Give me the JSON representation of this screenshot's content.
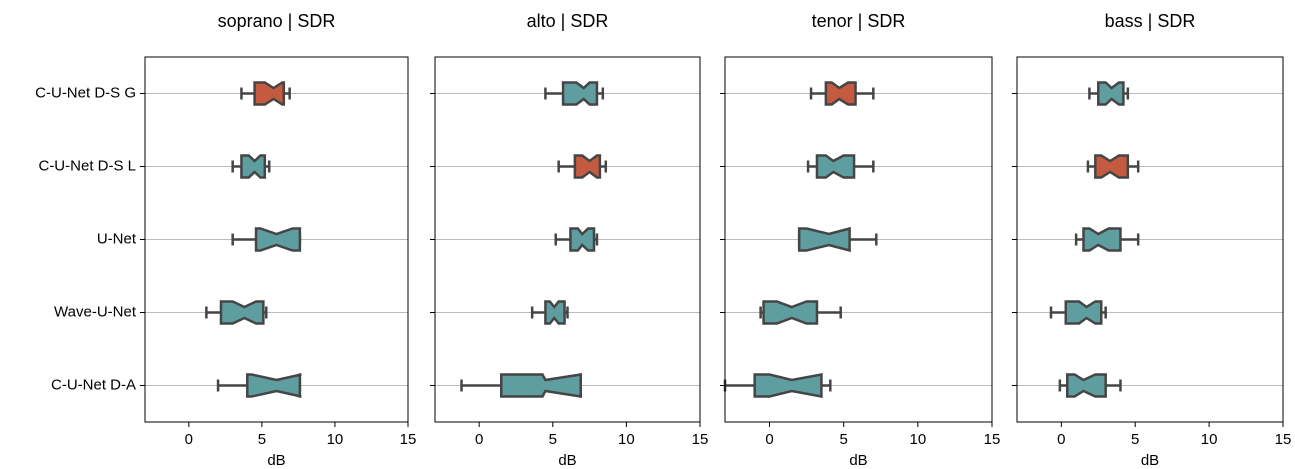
{
  "chart_data": [
    {
      "type": "box",
      "title": "soprano | SDR",
      "xlabel": "dB",
      "xlim": [
        -3,
        15
      ],
      "xticks": [
        0,
        5,
        10,
        15
      ],
      "categories": [
        "C-U-Net D-S G",
        "C-U-Net D-S L",
        "U-Net",
        "Wave-U-Net",
        "C-U-Net D-A"
      ],
      "boxes": [
        {
          "min": 3.6,
          "q1": 4.5,
          "median": 5.8,
          "q3": 6.5,
          "max": 6.9,
          "notch_low": 5.2,
          "notch_high": 6.4,
          "color": "#c45a3f"
        },
        {
          "min": 3.0,
          "q1": 3.6,
          "median": 4.5,
          "q3": 5.2,
          "max": 5.5,
          "notch_low": 4.1,
          "notch_high": 4.9,
          "color": "#5f9ea0"
        },
        {
          "min": 3.0,
          "q1": 4.6,
          "median": 6.0,
          "q3": 7.6,
          "max": 7.6,
          "notch_low": 4.9,
          "notch_high": 7.1,
          "color": "#5f9ea0"
        },
        {
          "min": 1.2,
          "q1": 2.2,
          "median": 3.8,
          "q3": 5.1,
          "max": 5.3,
          "notch_low": 3.0,
          "notch_high": 4.6,
          "color": "#5f9ea0"
        },
        {
          "min": 2.0,
          "q1": 4.0,
          "median": 6.0,
          "q3": 7.6,
          "max": 7.6,
          "notch_low": 4.3,
          "notch_high": 7.7,
          "color": "#5f9ea0"
        }
      ]
    },
    {
      "type": "box",
      "title": "alto | SDR",
      "xlabel": "dB",
      "xlim": [
        -3,
        15
      ],
      "xticks": [
        0,
        5,
        10,
        15
      ],
      "boxes": [
        {
          "min": 4.5,
          "q1": 5.7,
          "median": 7.1,
          "q3": 8.0,
          "max": 8.4,
          "notch_low": 6.6,
          "notch_high": 7.5,
          "color": "#5f9ea0"
        },
        {
          "min": 5.4,
          "q1": 6.5,
          "median": 7.5,
          "q3": 8.2,
          "max": 8.6,
          "notch_low": 7.0,
          "notch_high": 8.0,
          "color": "#c45a3f"
        },
        {
          "min": 5.2,
          "q1": 6.2,
          "median": 7.0,
          "q3": 7.8,
          "max": 8.0,
          "notch_low": 6.7,
          "notch_high": 7.4,
          "color": "#5f9ea0"
        },
        {
          "min": 3.6,
          "q1": 4.5,
          "median": 5.1,
          "q3": 5.8,
          "max": 6.0,
          "notch_low": 4.8,
          "notch_high": 5.4,
          "color": "#5f9ea0"
        },
        {
          "min": -1.2,
          "q1": 1.5,
          "median": 4.5,
          "q3": 6.9,
          "max": 6.9,
          "notch_low": 4.3,
          "notch_high": 6.9,
          "color": "#5f9ea0"
        }
      ]
    },
    {
      "type": "box",
      "title": "tenor | SDR",
      "xlabel": "dB",
      "xlim": [
        -3,
        15
      ],
      "xticks": [
        0,
        5,
        10,
        15
      ],
      "boxes": [
        {
          "min": 2.8,
          "q1": 3.8,
          "median": 4.7,
          "q3": 5.8,
          "max": 7.0,
          "notch_low": 4.2,
          "notch_high": 5.3,
          "color": "#c45a3f"
        },
        {
          "min": 2.6,
          "q1": 3.2,
          "median": 4.3,
          "q3": 5.7,
          "max": 7.0,
          "notch_low": 3.8,
          "notch_high": 5.0,
          "color": "#5f9ea0"
        },
        {
          "min": 2.0,
          "q1": 2.0,
          "median": 4.0,
          "q3": 5.4,
          "max": 7.2,
          "notch_low": 2.5,
          "notch_high": 5.4,
          "color": "#5f9ea0"
        },
        {
          "min": -0.6,
          "q1": -0.4,
          "median": 1.5,
          "q3": 3.2,
          "max": 4.8,
          "notch_low": 0.5,
          "notch_high": 2.5,
          "color": "#5f9ea0"
        },
        {
          "min": -3.0,
          "q1": -1.0,
          "median": 1.5,
          "q3": 3.5,
          "max": 4.1,
          "notch_low": 0.0,
          "notch_high": 3.5,
          "color": "#5f9ea0"
        }
      ]
    },
    {
      "type": "box",
      "title": "bass | SDR",
      "xlabel": "dB",
      "xlim": [
        -3,
        15
      ],
      "xticks": [
        0,
        5,
        10,
        15
      ],
      "boxes": [
        {
          "min": 1.9,
          "q1": 2.5,
          "median": 3.4,
          "q3": 4.2,
          "max": 4.5,
          "notch_low": 3.0,
          "notch_high": 3.9,
          "color": "#5f9ea0"
        },
        {
          "min": 1.8,
          "q1": 2.3,
          "median": 3.3,
          "q3": 4.5,
          "max": 5.2,
          "notch_low": 2.7,
          "notch_high": 3.9,
          "color": "#c45a3f"
        },
        {
          "min": 1.0,
          "q1": 1.5,
          "median": 2.5,
          "q3": 4.0,
          "max": 5.2,
          "notch_low": 1.9,
          "notch_high": 3.2,
          "color": "#5f9ea0"
        },
        {
          "min": -0.7,
          "q1": 0.3,
          "median": 1.7,
          "q3": 2.7,
          "max": 3.0,
          "notch_low": 1.2,
          "notch_high": 2.3,
          "color": "#5f9ea0"
        },
        {
          "min": -0.1,
          "q1": 0.4,
          "median": 1.5,
          "q3": 3.0,
          "max": 4.0,
          "notch_low": 0.9,
          "notch_high": 2.3,
          "color": "#5f9ea0"
        }
      ]
    }
  ]
}
